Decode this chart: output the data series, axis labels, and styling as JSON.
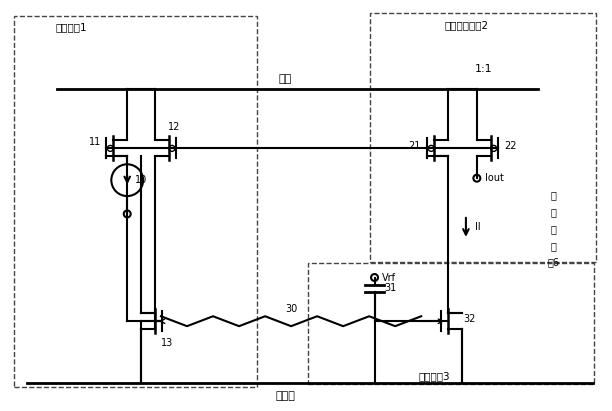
{
  "fig_width": 6.12,
  "fig_height": 4.11,
  "dpi": 100,
  "bg_color": "#ffffff",
  "line_color": "#000000",
  "dash_color": "#444444",
  "lw_main": 1.5,
  "lw_thin": 1.0,
  "lw_thick": 2.0,
  "labels": {
    "bias_circuit": "偏置电路1",
    "gain_control": "增益控制电路2",
    "rectifier": "整流电路3",
    "power_amp_line1": "功",
    "power_amp_line2": "率",
    "power_amp_line3": "放",
    "power_amp_line4": "大",
    "power_amp_line5": "器6",
    "power_supply": "电源",
    "ground": "接地端",
    "ratio": "1:1",
    "vrf": "Vrf",
    "il": "Il",
    "iout": "Iout",
    "n10": "10",
    "n11": "11",
    "n12": "12",
    "n13": "13",
    "n21": "21",
    "n22": "22",
    "n30": "30",
    "n31": "31",
    "n32": "32"
  }
}
